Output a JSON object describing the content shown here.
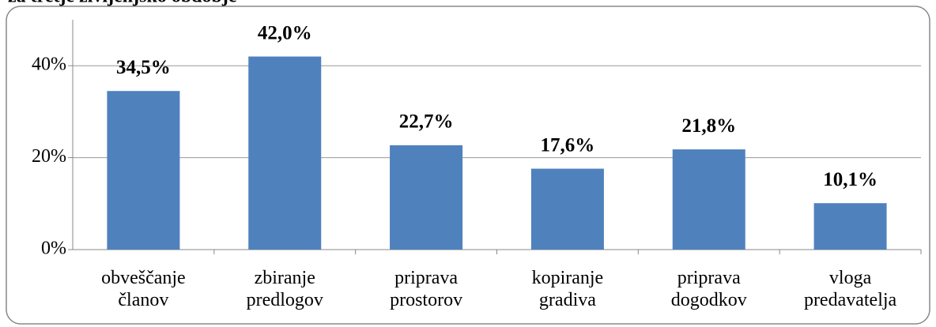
{
  "chart_data": {
    "type": "bar",
    "title": "za tretje življenjsko obdobje",
    "categories": [
      "obveščanje\nčlanov",
      "zbiranje\npredlogov",
      "priprava\nprostorov",
      "kopiranje\ngradiva",
      "priprava\ndogodkov",
      "vloga\npredavatelja"
    ],
    "values": [
      34.5,
      42.0,
      22.7,
      17.6,
      21.8,
      10.1
    ],
    "value_labels": [
      "34,5%",
      "42,0%",
      "22,7%",
      "17,6%",
      "21,8%",
      "10,1%"
    ],
    "color": "#4f81bd",
    "ylim": [
      0,
      50
    ],
    "yticks": [
      {
        "value": 0,
        "label": "0%"
      },
      {
        "value": 20,
        "label": "20%"
      },
      {
        "value": 40,
        "label": "40%"
      }
    ],
    "grid": true
  }
}
